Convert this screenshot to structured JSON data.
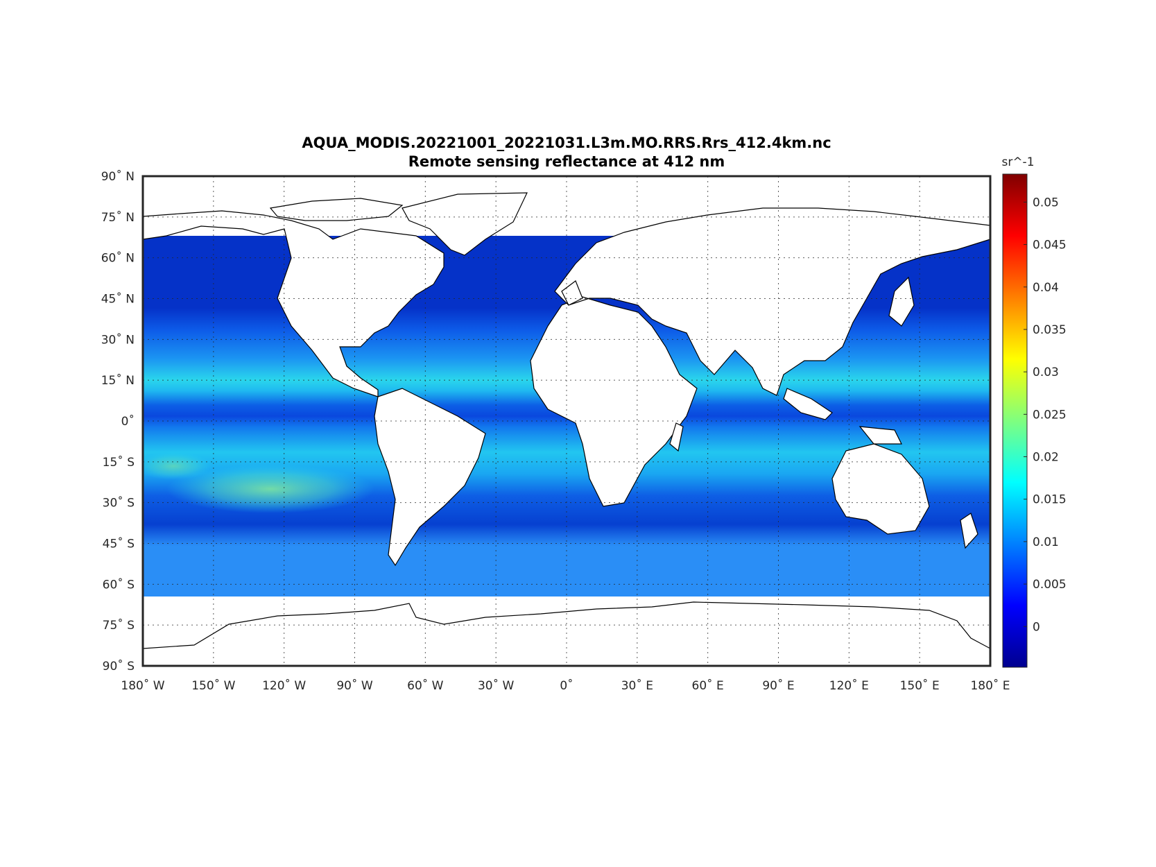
{
  "title_line1": "AQUA_MODIS.20221001_20221031.L3m.MO.RRS.Rrs_412.4km.nc",
  "title_line2": "Remote sensing reflectance at 412 nm",
  "colorbar": {
    "unit_label": "sr^-1",
    "colormap": "jet",
    "range": [
      -0.0048,
      0.0533
    ],
    "ticks": [
      {
        "value": 0.05,
        "label": "0.05"
      },
      {
        "value": 0.045,
        "label": "0.045"
      },
      {
        "value": 0.04,
        "label": "0.04"
      },
      {
        "value": 0.035,
        "label": "0.035"
      },
      {
        "value": 0.03,
        "label": "0.03"
      },
      {
        "value": 0.025,
        "label": "0.025"
      },
      {
        "value": 0.02,
        "label": "0.02"
      },
      {
        "value": 0.015,
        "label": "0.015"
      },
      {
        "value": 0.01,
        "label": "0.01"
      },
      {
        "value": 0.005,
        "label": "0.005"
      },
      {
        "value": 0,
        "label": "0"
      }
    ]
  },
  "map": {
    "projection": "equirectangular",
    "lon_range": [
      -180,
      180
    ],
    "lat_range": [
      -90,
      90
    ],
    "grid": true,
    "lat_ticks": [
      {
        "value": 90,
        "label": "90˚ N"
      },
      {
        "value": 75,
        "label": "75˚ N"
      },
      {
        "value": 60,
        "label": "60˚ N"
      },
      {
        "value": 45,
        "label": "45˚ N"
      },
      {
        "value": 30,
        "label": "30˚ N"
      },
      {
        "value": 15,
        "label": "15˚ N"
      },
      {
        "value": 0,
        "label": "0˚"
      },
      {
        "value": -15,
        "label": "15˚ S"
      },
      {
        "value": -30,
        "label": "30˚ S"
      },
      {
        "value": -45,
        "label": "45˚ S"
      },
      {
        "value": -60,
        "label": "60˚ S"
      },
      {
        "value": -75,
        "label": "75˚ S"
      },
      {
        "value": -90,
        "label": "90˚ S"
      }
    ],
    "lon_ticks": [
      {
        "value": -180,
        "label": "180˚ W"
      },
      {
        "value": -150,
        "label": "150˚ W"
      },
      {
        "value": -120,
        "label": "120˚ W"
      },
      {
        "value": -90,
        "label": "90˚ W"
      },
      {
        "value": -60,
        "label": "60˚ W"
      },
      {
        "value": -30,
        "label": "30˚ W"
      },
      {
        "value": 0,
        "label": "0˚"
      },
      {
        "value": 30,
        "label": "30˚ E"
      },
      {
        "value": 60,
        "label": "60˚ E"
      },
      {
        "value": 90,
        "label": "90˚ E"
      },
      {
        "value": 120,
        "label": "120˚ E"
      },
      {
        "value": 150,
        "label": "150˚ E"
      },
      {
        "value": 180,
        "label": "180˚ E"
      }
    ],
    "colors": {
      "land": "#ffffff",
      "coastline": "#000000",
      "ocean_low": "#0a3fe0",
      "ocean_mid": "#1a8cf5",
      "ocean_high": "#27e2e8"
    },
    "value_bands": [
      {
        "lat_range": [
          60,
          90
        ],
        "rrs": 0.003
      },
      {
        "lat_range": [
          40,
          60
        ],
        "rrs": 0.006
      },
      {
        "lat_range": [
          30,
          40
        ],
        "rrs": 0.011
      },
      {
        "lat_range": [
          15,
          30
        ],
        "rrs": 0.016
      },
      {
        "lat_range": [
          5,
          15
        ],
        "rrs": 0.013
      },
      {
        "lat_range": [
          -5,
          5
        ],
        "rrs": 0.008
      },
      {
        "lat_range": [
          -30,
          -5
        ],
        "rrs": 0.017
      },
      {
        "lat_range": [
          -45,
          -30
        ],
        "rrs": 0.011
      },
      {
        "lat_range": [
          -65,
          -45
        ],
        "rrs": 0.007
      },
      {
        "lat_range": [
          -90,
          -65
        ],
        "rrs": null
      }
    ],
    "pacific_max_rrs": 0.024
  }
}
